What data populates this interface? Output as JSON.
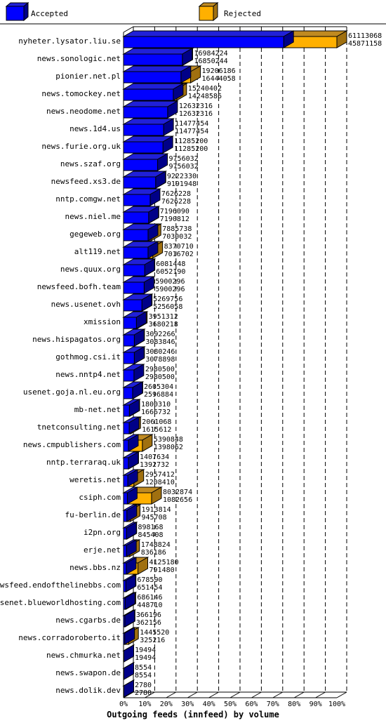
{
  "colors": {
    "accepted": "#0000ff",
    "accepted_top": "#2020d8",
    "accepted_side": "#000088",
    "rejected": "#ffb000",
    "rejected_top": "#c08a20",
    "rejected_side": "#a07010",
    "frame": "#000000"
  },
  "chart_data": {
    "type": "bar",
    "orientation": "horizontal",
    "stacked": "overlay",
    "title": "Outgoing feeds (innfeed) by volume",
    "legend": {
      "placement": "top",
      "entries": [
        "Accepted",
        "Rejected"
      ]
    },
    "x_ticks": [
      "0%",
      "10%",
      "20%",
      "30%",
      "40%",
      "50%",
      "60%",
      "70%",
      "80%",
      "90%",
      "100%"
    ],
    "xlim": [
      0,
      100
    ],
    "categories": [
      "nyheter.lysator.liu.se",
      "news.sonologic.net",
      "pionier.net.pl",
      "news.tomockey.net",
      "news.neodome.net",
      "news.1d4.us",
      "news.furie.org.uk",
      "news.szaf.org",
      "newsfeed.xs3.de",
      "nntp.comgw.net",
      "news.niel.me",
      "gegeweb.org",
      "alt119.net",
      "news.quux.org",
      "newsfeed.bofh.team",
      "news.usenet.ovh",
      "xmission",
      "news.hispagatos.org",
      "gothmog.csi.it",
      "news.nntp4.net",
      "usenet.goja.nl.eu.org",
      "mb-net.net",
      "tnetconsulting.net",
      "news.cmpublishers.com",
      "nntp.terraraq.uk",
      "weretis.net",
      "csiph.com",
      "fu-berlin.de",
      "i2pn.org",
      "erje.net",
      "news.bbs.nz",
      "newsfeed.endofthelinebbs.com",
      "usenet.blueworldhosting.com",
      "news.cgarbs.de",
      "news.corradoroberto.it",
      "news.chmurka.net",
      "news.swapon.de",
      "news.dolik.dev"
    ],
    "total_values": [
      "61113068",
      "16984224",
      "19206186",
      "15240402",
      "12632316",
      "11477454",
      "11285200",
      "9756032",
      "9222330",
      "7626228",
      "7196090",
      "7885738",
      "8370710",
      "6081448",
      "5900296",
      "5269756",
      "3951312",
      "3092266",
      "3080246",
      "2980500",
      "2605304",
      "1800310",
      "2061068",
      "5390848",
      "1407634",
      "2957412",
      "8032874",
      "1913814",
      "898168",
      "1748824",
      "4125180",
      "678590",
      "686146",
      "366196",
      "1445520",
      "19494",
      "8554",
      "2780"
    ],
    "accepted_values": [
      "45871158",
      "16850244",
      "16444058",
      "14248586",
      "12632316",
      "11477454",
      "11285200",
      "9756032",
      "9191948",
      "7626228",
      "7190812",
      "7030032",
      "7016702",
      "6052190",
      "5900296",
      "5256058",
      "3680218",
      "3083846",
      "3078898",
      "2980500",
      "2596884",
      "1666732",
      "1615612",
      "1398062",
      "1392732",
      "1208410",
      "1082656",
      "945708",
      "845408",
      "836186",
      "791480",
      "651454",
      "448710",
      "362156",
      "325216",
      "19494",
      "8554",
      "2780"
    ]
  }
}
